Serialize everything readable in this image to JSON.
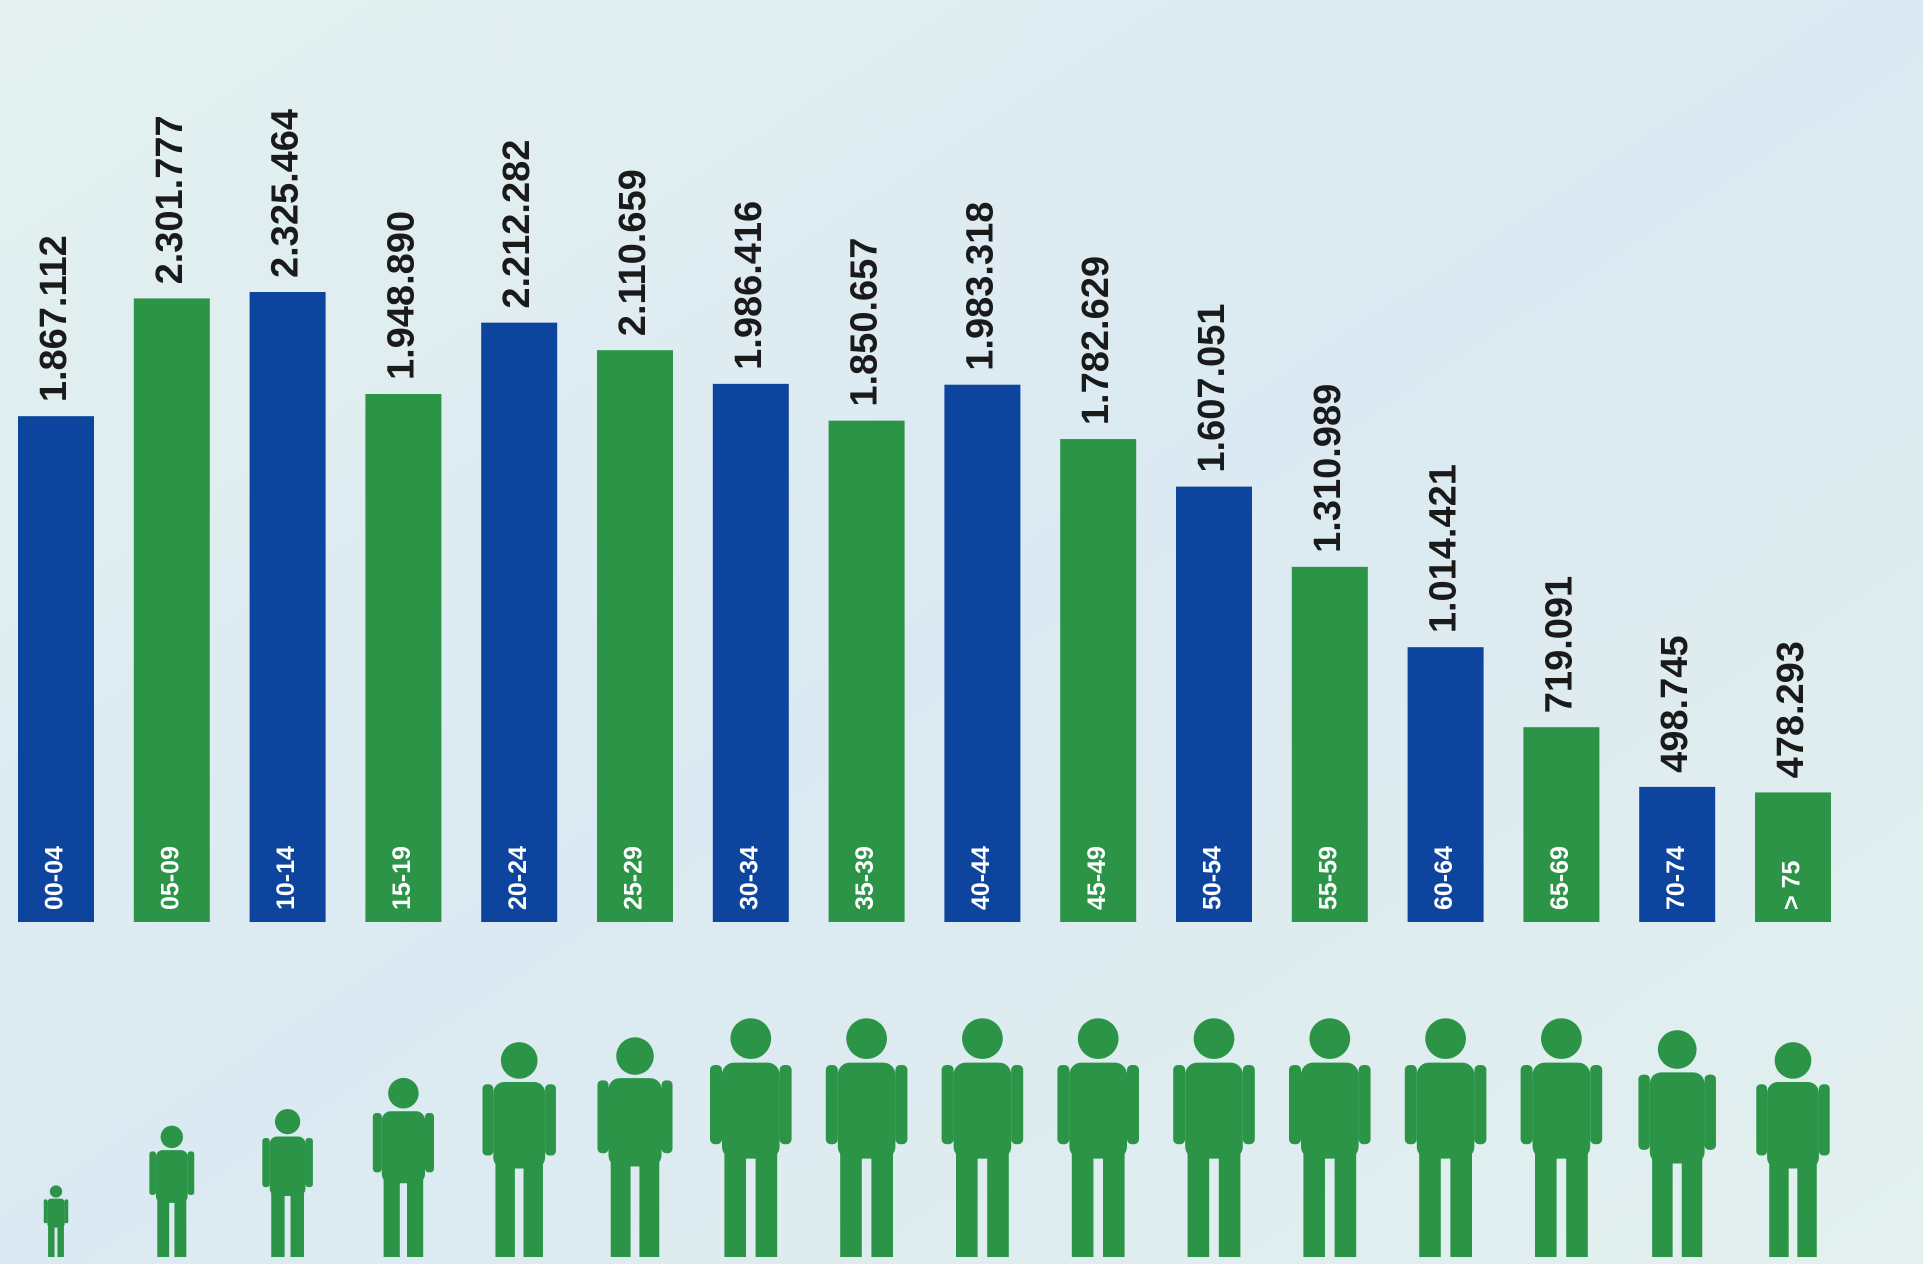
{
  "chart_data": {
    "type": "bar",
    "categories": [
      "00-04",
      "05-09",
      "10-14",
      "15-19",
      "20-24",
      "25-29",
      "30-34",
      "35-39",
      "40-44",
      "45-49",
      "50-54",
      "55-59",
      "60-64",
      "65-69",
      "70-74",
      "> 75"
    ],
    "values": [
      1867112,
      2301777,
      2325464,
      1948890,
      2212282,
      2110659,
      1986416,
      1850657,
      1983318,
      1782629,
      1607051,
      1310989,
      1014421,
      719091,
      498745,
      478293
    ],
    "value_labels": [
      "1.867.112",
      "2.301.777",
      "2.325.464",
      "1.948.890",
      "2.212.282",
      "2.110.659",
      "1.986.416",
      "1.850.657",
      "1.983.318",
      "1.782.629",
      "1.607.051",
      "1.310.989",
      "1.014.421",
      "719.091",
      "498.745",
      "478.293"
    ],
    "colors": [
      "#0c449e",
      "#2b9447",
      "#0c449e",
      "#2b9447",
      "#0c449e",
      "#2b9447",
      "#0c449e",
      "#2b9447",
      "#0c449e",
      "#2b9447",
      "#0c449e",
      "#2b9447",
      "#0c449e",
      "#2b9447",
      "#0c449e",
      "#2b9447"
    ]
  }
}
